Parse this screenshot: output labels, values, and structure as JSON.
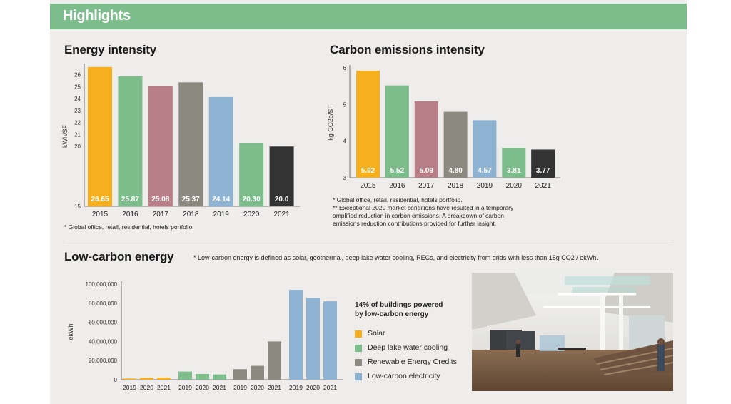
{
  "header": {
    "title": "Highlights"
  },
  "sections": {
    "energy_title": "Energy intensity",
    "carbon_title": "Carbon emissions intensity",
    "lowcarbon_title": "Low-carbon energy",
    "lowcarbon_definition": "* Low-carbon energy is defined as solar, geothermal, deep lake water cooling, RECs, and electricity from grids with less than 15g CO2 / ekWh."
  },
  "notes": {
    "energy_footnote": "* Global office, retail, residential, hotels portfolio.",
    "carbon_footnote_1": "* Global office, retail, residential, hotels portfolio.",
    "carbon_footnote_2": "** Exceptional 2020 market conditions have resulted in a temporary",
    "carbon_footnote_3": "amplified reduction in carbon emissions. A breakdown of carbon",
    "carbon_footnote_4": "emissions reduction contributions provided for further insight."
  },
  "legend": {
    "heading_1": "14% of buildings powered",
    "heading_2": "by low-carbon energy",
    "items": [
      {
        "label": "Solar",
        "color": "#f6b01e"
      },
      {
        "label": "Deep lake water cooling",
        "color": "#7dbd8c"
      },
      {
        "label": "Renewable Energy Credits",
        "color": "#8c8a80"
      },
      {
        "label": "Low-carbon electricity",
        "color": "#8fb3d3"
      }
    ]
  },
  "colors": [
    "#f6b01e",
    "#7dbd8c",
    "#b97f88",
    "#8c8a80",
    "#8fb3d3",
    "#7dbd8c",
    "#333333"
  ],
  "chart_data": [
    {
      "type": "bar",
      "title": "Energy intensity",
      "ylabel": "kWh/SF",
      "categories": [
        "2015",
        "2016",
        "2017",
        "2018",
        "2019",
        "2020",
        "2021"
      ],
      "values": [
        26.65,
        25.87,
        25.08,
        25.37,
        24.14,
        20.3,
        20.0
      ],
      "data_labels": [
        "26.65",
        "25.87",
        "25.08",
        "25.37",
        "24.14",
        "20.30",
        "20.0"
      ],
      "ylim": [
        15,
        26.7
      ],
      "yticks": [
        15,
        20,
        21,
        22,
        23,
        24,
        25,
        26
      ],
      "grid": false
    },
    {
      "type": "bar",
      "title": "Carbon emissions intensity",
      "ylabel": "kg CO2e/SF",
      "categories": [
        "2015",
        "2016",
        "2017",
        "2018",
        "2019",
        "2020",
        "2021"
      ],
      "values": [
        5.92,
        5.52,
        5.09,
        4.8,
        4.57,
        3.81,
        3.77
      ],
      "data_labels": [
        "5.92",
        "5.52",
        "5.09",
        "4.80",
        "4.57",
        "3.81",
        "3.77"
      ],
      "ylim": [
        3,
        6
      ],
      "yticks": [
        3,
        4,
        5,
        6
      ],
      "grid": false
    },
    {
      "type": "bar",
      "title": "Low-carbon energy",
      "ylabel": "ekWh",
      "ylim": [
        0,
        100000000
      ],
      "yticks": [
        0,
        20000000,
        40000000,
        60000000,
        80000000,
        100000000
      ],
      "ytick_labels": [
        "0",
        "20,000,000",
        "40,000,000",
        "60,000,000",
        "80,000,000",
        "100,000,000"
      ],
      "categories": [
        "2019",
        "2020",
        "2021"
      ],
      "series": [
        {
          "name": "Solar",
          "values": [
            1200000,
            2000000,
            2200000
          ]
        },
        {
          "name": "Deep lake water cooling",
          "values": [
            8500000,
            6000000,
            5500000
          ]
        },
        {
          "name": "Renewable Energy Credits",
          "values": [
            11000000,
            14500000,
            40000000
          ]
        },
        {
          "name": "Low-carbon electricity",
          "values": [
            94000000,
            85500000,
            82000000
          ]
        }
      ],
      "grid": false
    }
  ]
}
